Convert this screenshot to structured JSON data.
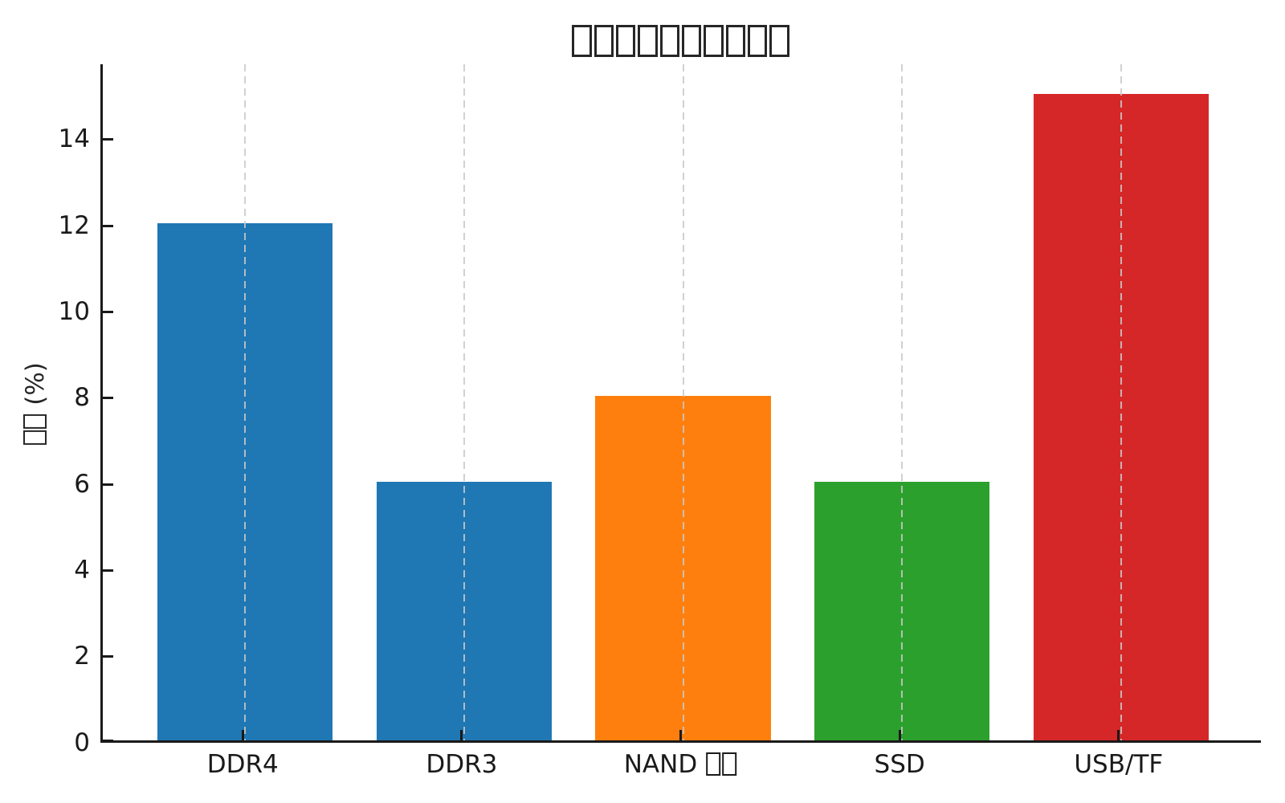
{
  "chart_data": {
    "type": "bar",
    "title": "□□□□□□□□□□",
    "xlabel": "",
    "ylabel": "□□ (%)",
    "categories": [
      "DDR4",
      "DDR3",
      "NAND □□",
      "SSD",
      "USB/TF"
    ],
    "values": [
      12,
      6,
      8,
      6,
      15
    ],
    "bar_colors": [
      "#1f77b4",
      "#1f77b4",
      "#ff7f0e",
      "#2ca02c",
      "#d62728"
    ],
    "bar_width": 0.8,
    "xlim": [
      -0.65,
      4.65
    ],
    "ylim": [
      0,
      15.75
    ],
    "yticks": [
      0,
      2,
      4,
      6,
      8,
      10,
      12,
      14
    ],
    "grid": "vertical dashed gridlines at category centers, drawn over bars",
    "legend": "none",
    "note": "title, ylabel prefix and 'NAND' suffix glyphs render as missing-glyph tofu boxes"
  },
  "colors": {
    "background": "#ffffff",
    "axis": "#1a1a1a",
    "grid": "#c9c9c9",
    "blue": "#1f77b4",
    "orange": "#ff7f0e",
    "green": "#2ca02c",
    "red": "#d62728"
  }
}
